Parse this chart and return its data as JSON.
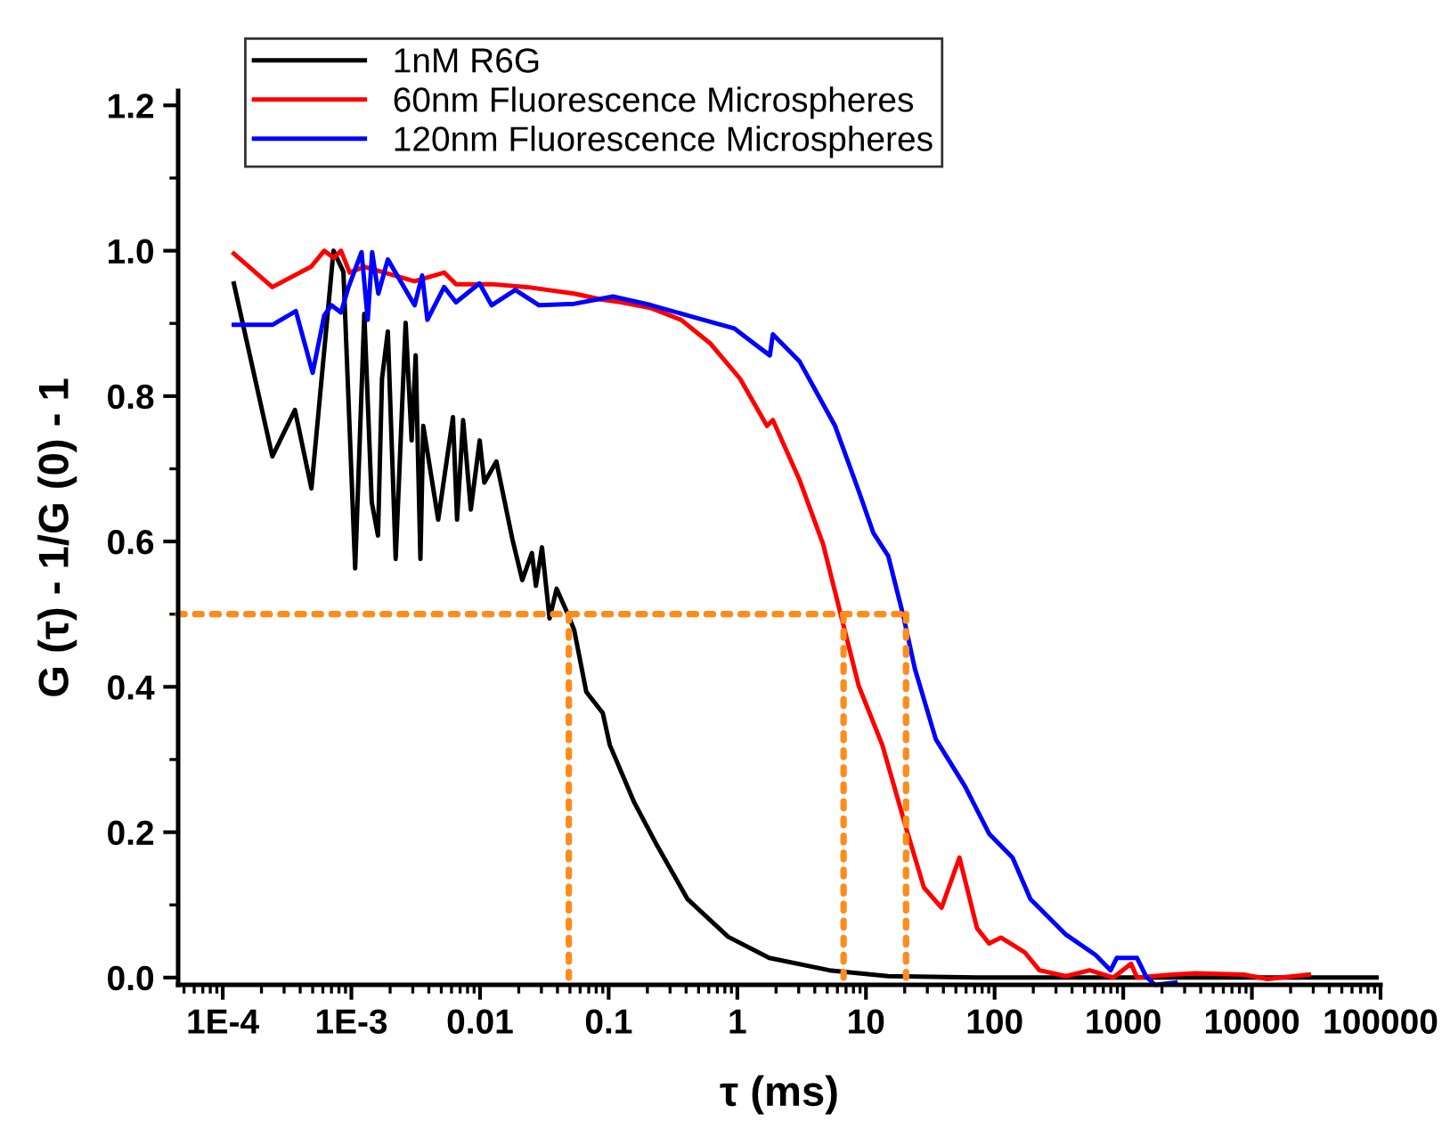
{
  "chart_data": {
    "type": "line",
    "xlabel": "τ (ms)",
    "ylabel": "G (τ) - 1/G (0) - 1",
    "log": "x",
    "xlim": [
      4.5e-05,
      100000
    ],
    "xticks": [
      {
        "value": 0.0001,
        "label": "1E-4"
      },
      {
        "value": 0.001,
        "label": "1E-3"
      },
      0.01,
      0.1,
      1,
      10,
      100,
      1000,
      10000,
      100000
    ],
    "ylim": [
      -0.01,
      1.22
    ],
    "yticks": [
      {
        "value": 0,
        "label": "0.0"
      },
      0.2,
      0.4,
      0.6,
      0.8,
      {
        "value": 1,
        "label": "1.0"
      },
      1.2
    ],
    "grid": false,
    "legend": "top left",
    "line_style": "solid",
    "marker": "none",
    "series": [
      {
        "name": "1nM R6G",
        "color": "#000000",
        "x": [
          0.000122,
          0.000243,
          0.000364,
          0.000489,
          0.000726,
          0.000867,
          0.00107,
          0.00126,
          0.00144,
          0.00161,
          0.00173,
          0.00192,
          0.00221,
          0.00264,
          0.00294,
          0.00316,
          0.00344,
          0.00362,
          0.00473,
          0.00616,
          0.00663,
          0.00739,
          0.00848,
          0.00994,
          0.0108,
          0.0134,
          0.0178,
          0.0213,
          0.0253,
          0.0272,
          0.0303,
          0.0347,
          0.0394,
          0.0487,
          0.054,
          0.067,
          0.09,
          0.102,
          0.157,
          0.239,
          0.41,
          0.85,
          1.77,
          5.2,
          14.9,
          73,
          1780,
          93000
        ],
        "values": [
          0.955,
          0.717,
          0.781,
          0.673,
          1.0,
          0.971,
          0.563,
          0.913,
          0.654,
          0.608,
          0.824,
          0.889,
          0.576,
          0.901,
          0.739,
          0.856,
          0.576,
          0.759,
          0.63,
          0.771,
          0.63,
          0.767,
          0.644,
          0.739,
          0.681,
          0.71,
          0.604,
          0.547,
          0.584,
          0.539,
          0.592,
          0.494,
          0.535,
          0.498,
          0.478,
          0.393,
          0.364,
          0.32,
          0.242,
          0.181,
          0.108,
          0.056,
          0.027,
          0.01,
          0.002,
          0.0,
          0.0,
          0.0
        ]
      },
      {
        "name": "60nm Fluorescence Microspheres",
        "color": "#ff0000",
        "x": [
          0.000122,
          0.000243,
          0.000486,
          0.000615,
          0.00073,
          0.00083,
          0.00097,
          0.00126,
          0.0031,
          0.00526,
          0.0065,
          0.0123,
          0.0232,
          0.054,
          0.087,
          0.126,
          0.215,
          0.365,
          0.62,
          1.05,
          1.7,
          1.89,
          3.04,
          4.65,
          6.4,
          8.8,
          13.4,
          20.5,
          28.2,
          38.7,
          53.3,
          73,
          90.6,
          112,
          171,
          223,
          359,
          548,
          839,
          1150,
          1280,
          2420,
          3660,
          8630,
          13200,
          27700
        ],
        "values": [
          0.996,
          0.95,
          0.978,
          1.0,
          0.99,
          1.0,
          0.97,
          0.978,
          0.958,
          0.97,
          0.954,
          0.954,
          0.95,
          0.941,
          0.933,
          0.929,
          0.921,
          0.905,
          0.872,
          0.824,
          0.759,
          0.767,
          0.685,
          0.596,
          0.498,
          0.401,
          0.32,
          0.206,
          0.124,
          0.096,
          0.165,
          0.068,
          0.047,
          0.055,
          0.035,
          0.01,
          0.002,
          0.01,
          0.0,
          0.019,
          0.0,
          0.004,
          0.006,
          0.004,
          -0.002,
          0.004
        ]
      },
      {
        "name": "120nm Fluorescence Microspheres",
        "color": "#0000ff",
        "x": [
          0.000122,
          0.000243,
          0.00037,
          0.0005,
          0.000615,
          0.0007,
          0.00083,
          0.00095,
          0.0012,
          0.00134,
          0.00145,
          0.00162,
          0.00192,
          0.0031,
          0.00355,
          0.0039,
          0.00526,
          0.0065,
          0.0099,
          0.0123,
          0.0188,
          0.0288,
          0.054,
          0.108,
          0.215,
          0.45,
          0.95,
          1.45,
          1.79,
          1.89,
          3.04,
          5.75,
          8.8,
          11.4,
          14.9,
          19.5,
          24.0,
          34.9,
          58.9,
          90.6,
          138,
          190,
          359,
          610,
          798,
          890,
          1280,
          1500,
          1760,
          2550
        ],
        "values": [
          0.898,
          0.898,
          0.917,
          0.832,
          0.911,
          0.925,
          0.915,
          0.95,
          0.998,
          0.905,
          0.998,
          0.941,
          0.988,
          0.925,
          0.966,
          0.905,
          0.95,
          0.929,
          0.955,
          0.925,
          0.946,
          0.925,
          0.927,
          0.937,
          0.925,
          0.909,
          0.893,
          0.868,
          0.856,
          0.885,
          0.848,
          0.759,
          0.669,
          0.612,
          0.58,
          0.498,
          0.425,
          0.328,
          0.263,
          0.198,
          0.165,
          0.108,
          0.059,
          0.031,
          0.01,
          0.027,
          0.027,
          0.002,
          -0.01,
          -0.007
        ]
      },
      {
        "color": "#ff8c1a",
        "line_style": "dotted",
        "x": [
          4.5e-05,
          20.5
        ],
        "values": [
          0.5,
          0.5
        ]
      },
      {
        "color": "#ff8c1a",
        "line_style": "dotted",
        "x": [
          0.049,
          0.049
        ],
        "values": [
          0.5,
          0.0
        ]
      },
      {
        "color": "#ff8c1a",
        "line_style": "dotted",
        "x": [
          6.7,
          6.7
        ],
        "values": [
          0.5,
          0.0
        ]
      },
      {
        "color": "#ff8c1a",
        "line_style": "dotted",
        "x": [
          20.5,
          20.5
        ],
        "values": [
          0.5,
          0.0
        ]
      }
    ]
  }
}
